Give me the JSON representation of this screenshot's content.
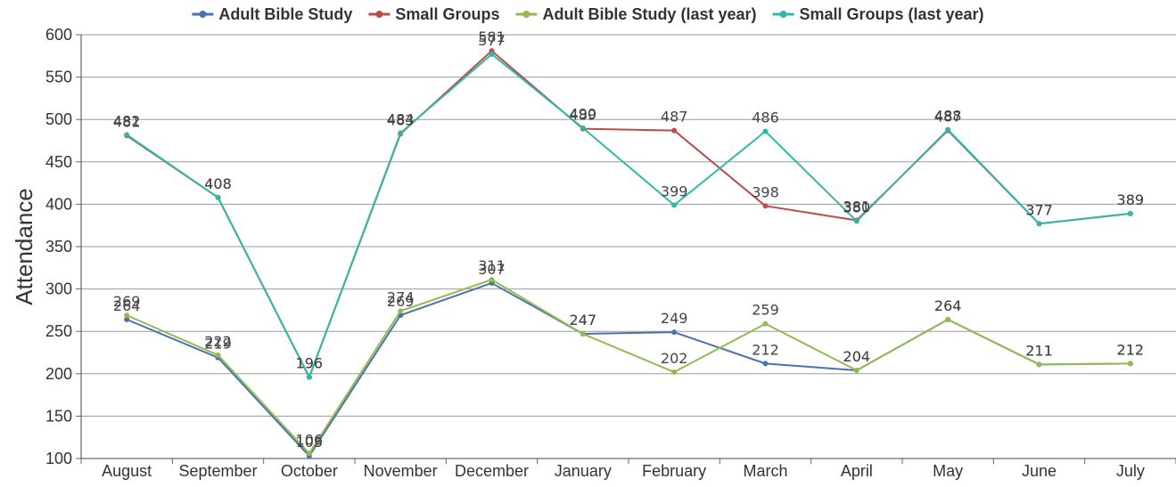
{
  "chart_data": {
    "type": "line",
    "title": "",
    "xlabel": "",
    "ylabel": "Attendance",
    "ylim": [
      100,
      600
    ],
    "yticks": [
      100,
      150,
      200,
      250,
      300,
      350,
      400,
      450,
      500,
      550,
      600
    ],
    "grid": true,
    "legend_position": "top",
    "categories": [
      "August",
      "September",
      "October",
      "November",
      "December",
      "January",
      "February",
      "March",
      "April",
      "May",
      "June",
      "July"
    ],
    "series": [
      {
        "name": "Adult Bible Study",
        "color": "#4a72b0",
        "values": [
          264,
          219,
          103,
          269,
          307,
          247,
          249,
          212,
          204,
          264,
          211,
          212
        ]
      },
      {
        "name": "Small Groups",
        "color": "#b84e48",
        "values": [
          481,
          408,
          196,
          483,
          581,
          489,
          487,
          398,
          381,
          487,
          377,
          389
        ]
      },
      {
        "name": "Adult Bible Study (last year)",
        "color": "#93bb52",
        "values": [
          269,
          222,
          106,
          274,
          311,
          247,
          202,
          259,
          204,
          264,
          211,
          212
        ]
      },
      {
        "name": "Small Groups (last year)",
        "color": "#2fb8a8",
        "values": [
          482,
          408,
          196,
          484,
          577,
          490,
          399,
          486,
          380,
          488,
          377,
          389
        ]
      }
    ]
  }
}
